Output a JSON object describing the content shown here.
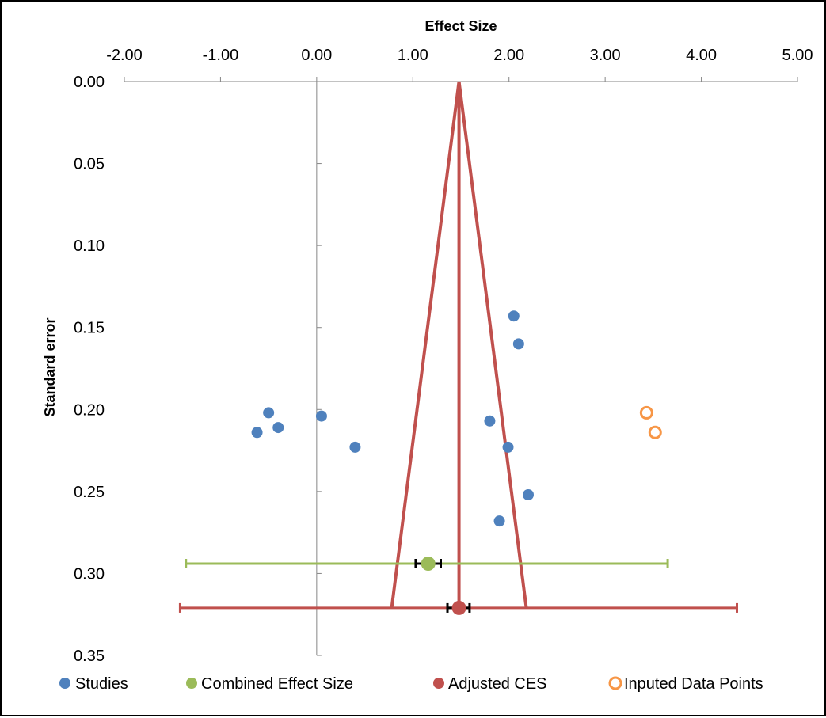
{
  "chart_data": {
    "type": "scatter",
    "title": "",
    "xlabel": "Effect Size",
    "ylabel": "Standard error",
    "xlim": [
      -2.0,
      5.0
    ],
    "ylim": [
      0.0,
      0.35
    ],
    "x_reversed": false,
    "y_reversed": true,
    "x_axis_position": "top",
    "x_ticks": [
      -2.0,
      -1.0,
      0.0,
      1.0,
      2.0,
      3.0,
      4.0,
      5.0
    ],
    "x_tick_labels": [
      "-2.00",
      "-1.00",
      "0.00",
      "1.00",
      "2.00",
      "3.00",
      "4.00",
      "5.00"
    ],
    "y_ticks": [
      0.0,
      0.05,
      0.1,
      0.15,
      0.2,
      0.25,
      0.3,
      0.35
    ],
    "y_tick_labels": [
      "0.00",
      "0.05",
      "0.10",
      "0.15",
      "0.20",
      "0.25",
      "0.30",
      "0.35"
    ],
    "grid": false,
    "legend_position": "bottom",
    "series": [
      {
        "name": "Studies",
        "color": "#4f81bd",
        "marker": "filled-circle",
        "points": [
          {
            "x": 2.05,
            "y": 0.143
          },
          {
            "x": 2.1,
            "y": 0.16
          },
          {
            "x": -0.5,
            "y": 0.202
          },
          {
            "x": 0.05,
            "y": 0.204
          },
          {
            "x": 1.8,
            "y": 0.207
          },
          {
            "x": -0.62,
            "y": 0.214
          },
          {
            "x": -0.4,
            "y": 0.211
          },
          {
            "x": 0.4,
            "y": 0.223
          },
          {
            "x": 1.99,
            "y": 0.223
          },
          {
            "x": 2.2,
            "y": 0.252
          },
          {
            "x": 1.9,
            "y": 0.268
          }
        ]
      },
      {
        "name": "Combined Effect Size",
        "color": "#9bbb59",
        "marker": "filled-circle",
        "points": [
          {
            "x": 1.16,
            "y": 0.294
          }
        ],
        "ci_outer": [
          -1.36,
          3.65
        ],
        "ci_inner": [
          1.03,
          1.29
        ]
      },
      {
        "name": "Adjusted CES",
        "color": "#c0504d",
        "marker": "filled-circle",
        "points": [
          {
            "x": 1.48,
            "y": 0.321
          }
        ],
        "ci_outer": [
          -1.42,
          4.37
        ],
        "ci_inner": [
          1.36,
          1.59
        ]
      },
      {
        "name": "Inputed Data Points",
        "color": "#f79646",
        "marker": "open-circle",
        "points": [
          {
            "x": 3.43,
            "y": 0.202
          },
          {
            "x": 3.52,
            "y": 0.214
          }
        ]
      }
    ],
    "funnel": {
      "color": "#c0504d",
      "apex": {
        "x": 1.48,
        "y": 0.0
      },
      "left_base": {
        "x": 0.78,
        "y": 0.321
      },
      "right_base": {
        "x": 2.18,
        "y": 0.321
      },
      "center_line_x": 1.48
    }
  }
}
